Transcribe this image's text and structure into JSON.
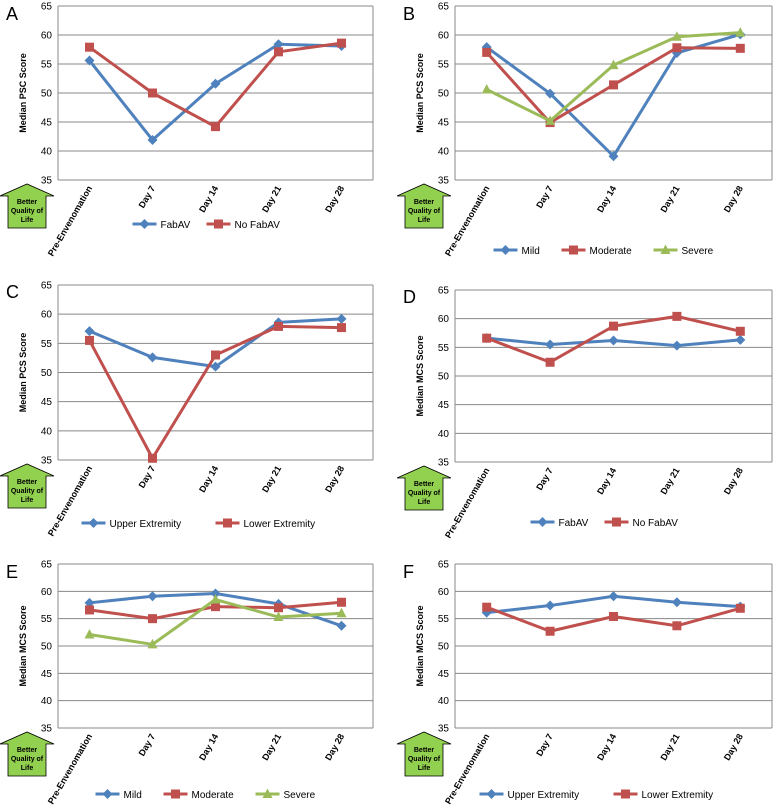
{
  "better_label": [
    "Better",
    "Quality of",
    "Life"
  ],
  "colors": {
    "blue": "#4F81BD",
    "red": "#C0504D",
    "green": "#9BBB59",
    "arrow_fill": "#92D050",
    "grid": "#888888"
  },
  "chart_data": [
    {
      "panel": "A",
      "type": "line",
      "ylabel": "Median PSC Score",
      "ylim": [
        35,
        65
      ],
      "yticks": [
        35,
        40,
        45,
        50,
        55,
        60,
        65
      ],
      "categories": [
        "Pre-Envenomation",
        "Day 7",
        "Day 14",
        "Day 21",
        "Day 28"
      ],
      "series": [
        {
          "name": "FabAV",
          "color": "blue",
          "marker": "diamond",
          "values": [
            55.6,
            41.9,
            51.6,
            58.4,
            58.1
          ]
        },
        {
          "name": "No FabAV",
          "color": "red",
          "marker": "square",
          "values": [
            57.9,
            50.0,
            44.2,
            57.1,
            58.6
          ]
        }
      ]
    },
    {
      "panel": "B",
      "type": "line",
      "ylabel": "Median PCS Score",
      "ylim": [
        35,
        65
      ],
      "yticks": [
        35,
        40,
        45,
        50,
        55,
        60,
        65
      ],
      "categories": [
        "Pre-Envenomation",
        "Day 7",
        "Day 14",
        "Day 21",
        "Day 28"
      ],
      "series": [
        {
          "name": "Mild",
          "color": "blue",
          "marker": "diamond",
          "values": [
            57.9,
            49.9,
            39.1,
            56.9,
            60.1
          ]
        },
        {
          "name": "Moderate",
          "color": "red",
          "marker": "square",
          "values": [
            57.0,
            44.9,
            51.4,
            57.8,
            57.7
          ]
        },
        {
          "name": "Severe",
          "color": "green",
          "marker": "triangle",
          "values": [
            50.6,
            45.2,
            54.8,
            59.7,
            60.4
          ]
        }
      ]
    },
    {
      "panel": "C",
      "type": "line",
      "ylabel": "Median PCS Score",
      "ylim": [
        35,
        65
      ],
      "yticks": [
        35,
        40,
        45,
        50,
        55,
        60,
        65
      ],
      "categories": [
        "Pre-Envenomation",
        "Day 7",
        "Day 14",
        "Day 21",
        "Day 28"
      ],
      "series": [
        {
          "name": "Upper Extremity",
          "color": "blue",
          "marker": "diamond",
          "values": [
            57.1,
            52.6,
            51.0,
            58.6,
            59.2
          ]
        },
        {
          "name": "Lower Extremity",
          "color": "red",
          "marker": "square",
          "values": [
            55.5,
            35.3,
            53.0,
            57.9,
            57.7
          ]
        }
      ]
    },
    {
      "panel": "D",
      "type": "line",
      "ylabel": "Median MCS Score",
      "ylim": [
        35,
        65
      ],
      "yticks": [
        35,
        40,
        45,
        50,
        55,
        60,
        65
      ],
      "categories": [
        "Pre-Envenomation",
        "Day 7",
        "Day 14",
        "Day 21",
        "Day 28"
      ],
      "series": [
        {
          "name": "FabAV",
          "color": "blue",
          "marker": "diamond",
          "values": [
            56.6,
            55.5,
            56.2,
            55.3,
            56.3
          ]
        },
        {
          "name": "No FabAV",
          "color": "red",
          "marker": "square",
          "values": [
            56.6,
            52.4,
            58.7,
            60.4,
            57.8
          ]
        }
      ]
    },
    {
      "panel": "E",
      "type": "line",
      "ylabel": "Median MCS Score",
      "ylim": [
        35,
        65
      ],
      "yticks": [
        35,
        40,
        45,
        50,
        55,
        60,
        65
      ],
      "categories": [
        "Pre-Envenomation",
        "Day 7",
        "Day 14",
        "Day 21",
        "Day 28"
      ],
      "series": [
        {
          "name": "Mild",
          "color": "blue",
          "marker": "diamond",
          "values": [
            57.9,
            59.1,
            59.6,
            57.7,
            53.7
          ]
        },
        {
          "name": "Moderate",
          "color": "red",
          "marker": "square",
          "values": [
            56.6,
            55.0,
            57.2,
            57.0,
            58.0
          ]
        },
        {
          "name": "Severe",
          "color": "green",
          "marker": "triangle",
          "values": [
            52.1,
            50.3,
            58.5,
            55.3,
            56.0
          ]
        }
      ]
    },
    {
      "panel": "F",
      "type": "line",
      "ylabel": "Median MCS Score",
      "ylim": [
        35,
        65
      ],
      "yticks": [
        35,
        40,
        45,
        50,
        55,
        60,
        65
      ],
      "categories": [
        "Pre-Envenomation",
        "Day 7",
        "Day 14",
        "Day 21",
        "Day 28"
      ],
      "series": [
        {
          "name": "Upper Extremity",
          "color": "blue",
          "marker": "diamond",
          "values": [
            56.1,
            57.4,
            59.1,
            58.0,
            57.2
          ]
        },
        {
          "name": "Lower Extremity",
          "color": "red",
          "marker": "square",
          "values": [
            57.1,
            52.7,
            55.4,
            53.7,
            56.9
          ]
        }
      ]
    }
  ]
}
